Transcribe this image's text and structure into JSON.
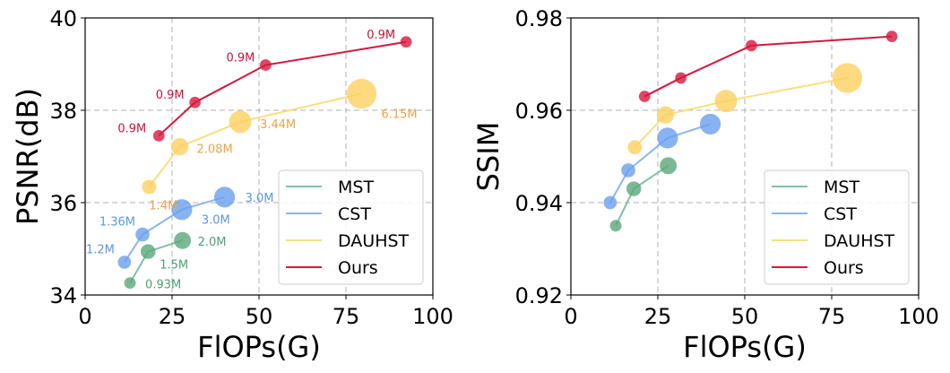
{
  "chart_data": [
    {
      "type": "scatter",
      "xlabel": "FlOPs(G)",
      "ylabel": "PSNR(dB)",
      "xlim": [
        0,
        100
      ],
      "ylim": [
        34,
        40
      ],
      "xticks": [
        "0",
        "25",
        "50",
        "75",
        "100"
      ],
      "yticks": [
        "34",
        "36",
        "38",
        "40"
      ],
      "grid": true,
      "legend_position": "lower-right",
      "series": [
        {
          "name": "MST",
          "color": "#5aa77a",
          "points": [
            {
              "x": 12.9,
              "y": 34.26,
              "size": 0.93,
              "label": "0.93M"
            },
            {
              "x": 18.1,
              "y": 34.94,
              "size": 1.5,
              "label": "1.5M"
            },
            {
              "x": 28.0,
              "y": 35.18,
              "size": 2.0,
              "label": "2.0M"
            }
          ]
        },
        {
          "name": "CST",
          "color": "#6aa0ef",
          "points": [
            {
              "x": 11.3,
              "y": 34.71,
              "size": 1.2,
              "label": "1.2M"
            },
            {
              "x": 16.5,
              "y": 35.31,
              "size": 1.36,
              "label": "1.36M"
            },
            {
              "x": 27.8,
              "y": 35.85,
              "size": 3.0,
              "label": "3.0M"
            },
            {
              "x": 40.1,
              "y": 36.12,
              "size": 3.0,
              "label": "3.0M"
            }
          ]
        },
        {
          "name": "DAUHST",
          "color": "#fdd060",
          "points": [
            {
              "x": 18.4,
              "y": 36.34,
              "size": 1.4,
              "label": "1.4M"
            },
            {
              "x": 27.2,
              "y": 37.21,
              "size": 2.08,
              "label": "2.08M"
            },
            {
              "x": 44.6,
              "y": 37.75,
              "size": 3.44,
              "label": "3.44M"
            },
            {
              "x": 79.5,
              "y": 38.36,
              "size": 6.15,
              "label": "6.15M"
            }
          ]
        },
        {
          "name": "Ours",
          "color": "#d8163f",
          "points": [
            {
              "x": 21.2,
              "y": 37.45,
              "size": 0.9,
              "label": "0.9M"
            },
            {
              "x": 31.6,
              "y": 38.17,
              "size": 0.9,
              "label": "0.9M"
            },
            {
              "x": 51.9,
              "y": 38.98,
              "size": 0.9,
              "label": "0.9M"
            },
            {
              "x": 92.3,
              "y": 39.48,
              "size": 0.9,
              "label": "0.9M"
            }
          ]
        }
      ]
    },
    {
      "type": "scatter",
      "xlabel": "FlOPs(G)",
      "ylabel": "SSIM",
      "xlim": [
        0,
        100
      ],
      "ylim": [
        0.92,
        0.98
      ],
      "xticks": [
        "0",
        "25",
        "50",
        "75",
        "100"
      ],
      "yticks": [
        "0.92",
        "0.94",
        "0.96",
        "0.98"
      ],
      "grid": true,
      "legend_position": "lower-right",
      "series": [
        {
          "name": "MST",
          "color": "#5aa77a",
          "points": [
            {
              "x": 12.9,
              "y": 0.935,
              "size": 0.93
            },
            {
              "x": 18.1,
              "y": 0.943,
              "size": 1.5
            },
            {
              "x": 28.0,
              "y": 0.948,
              "size": 2.0
            }
          ]
        },
        {
          "name": "CST",
          "color": "#6aa0ef",
          "points": [
            {
              "x": 11.3,
              "y": 0.94,
              "size": 1.2
            },
            {
              "x": 16.5,
              "y": 0.947,
              "size": 1.36
            },
            {
              "x": 27.8,
              "y": 0.954,
              "size": 3.0
            },
            {
              "x": 40.1,
              "y": 0.957,
              "size": 3.0
            }
          ]
        },
        {
          "name": "DAUHST",
          "color": "#fdd060",
          "points": [
            {
              "x": 18.4,
              "y": 0.952,
              "size": 1.4
            },
            {
              "x": 27.2,
              "y": 0.959,
              "size": 2.08
            },
            {
              "x": 44.6,
              "y": 0.962,
              "size": 3.44
            },
            {
              "x": 79.5,
              "y": 0.967,
              "size": 6.15
            }
          ]
        },
        {
          "name": "Ours",
          "color": "#d8163f",
          "points": [
            {
              "x": 21.2,
              "y": 0.963,
              "size": 0.9
            },
            {
              "x": 31.6,
              "y": 0.967,
              "size": 0.9
            },
            {
              "x": 51.9,
              "y": 0.974,
              "size": 0.9
            },
            {
              "x": 92.3,
              "y": 0.976,
              "size": 0.9
            }
          ]
        }
      ]
    }
  ]
}
